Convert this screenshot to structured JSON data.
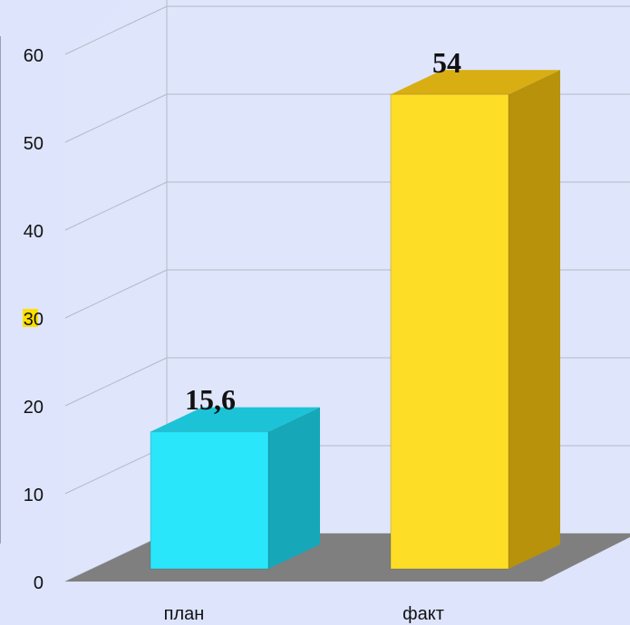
{
  "chart_data": {
    "type": "bar",
    "categories": [
      "план",
      "факт"
    ],
    "values": [
      15.6,
      54
    ],
    "data_labels": [
      "15,6",
      "54"
    ],
    "ylim": [
      0,
      60
    ],
    "yticks": [
      "0",
      "10",
      "20",
      "30",
      "40",
      "50",
      "60"
    ],
    "grid": true,
    "three_d": true,
    "colors": {
      "background": "#dde4fb",
      "wall": "#dfe5fb",
      "gridline": "#b5b9c6",
      "floor": "#7f7f7f",
      "bar_1": "#29e6fb",
      "bar_1_side": "#16a7b9",
      "bar_1_top": "#1cc3d7",
      "bar_2": "#fedd27",
      "bar_2_side": "#b8920b",
      "bar_2_top": "#d8ae13",
      "tick_30_highlight": "#fee000"
    }
  }
}
